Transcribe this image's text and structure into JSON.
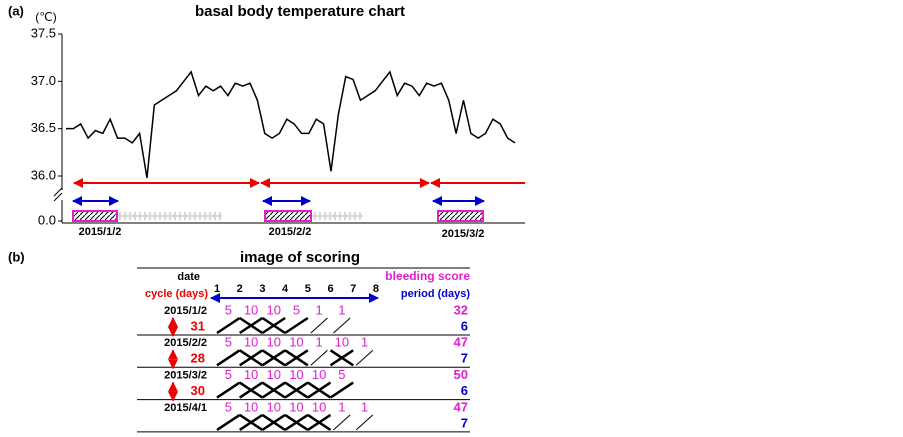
{
  "chart_data": {
    "type": "line",
    "panel_label": "(a)",
    "title": "basal body temperature chart",
    "y_label": "(℃)",
    "values": [
      36.5,
      36.5,
      36.55,
      36.4,
      36.48,
      36.45,
      36.6,
      36.4,
      36.4,
      36.35,
      36.45,
      35.98,
      36.75,
      36.8,
      36.85,
      36.9,
      37.0,
      37.1,
      36.85,
      36.95,
      36.9,
      36.95,
      36.85,
      36.98,
      36.95,
      36.98,
      36.8,
      36.45,
      36.4,
      36.45,
      36.6,
      36.55,
      36.45,
      36.45,
      36.6,
      36.55,
      36.05,
      36.65,
      37.05,
      37.02,
      36.8,
      36.85,
      36.9,
      37.0,
      37.1,
      36.85,
      36.98,
      36.95,
      36.85,
      36.98,
      36.95,
      36.98,
      36.8,
      36.45,
      36.8,
      36.45,
      36.4,
      36.45,
      36.6,
      36.55,
      36.4,
      36.35
    ],
    "color": "#000000",
    "ylim": [
      36.0,
      37.5
    ],
    "yticks": [
      {
        "value": 0,
        "label": "0.0"
      },
      {
        "value": 36.0,
        "label": "36.0"
      },
      36.5,
      {
        "value": 37.0,
        "label": "37.0"
      },
      37.5
    ],
    "period_start_dates": [
      "2015/1/2",
      "2015/2/2",
      "2015/3/2"
    ]
  },
  "scoring": {
    "panel_label": "(b)",
    "title": "image of  scoring",
    "headers": {
      "date": "date",
      "cycle": "cycle (days)",
      "bleeding": "bleeding score",
      "period": "period (days)"
    },
    "days": [
      1,
      2,
      3,
      4,
      5,
      6,
      7,
      8
    ],
    "rows": [
      {
        "date": "2015/1/2",
        "scores": [
          5,
          10,
          10,
          5,
          1,
          1
        ],
        "bleeding_score": 32,
        "period": 6
      },
      {
        "date": "2015/2/2",
        "scores": [
          5,
          10,
          10,
          10,
          1,
          10,
          1
        ],
        "bleeding_score": 47,
        "period": 7
      },
      {
        "date": "2015/3/2",
        "scores": [
          5,
          10,
          10,
          10,
          10,
          5
        ],
        "bleeding_score": 50,
        "period": 6
      },
      {
        "date": "2015/4/1",
        "scores": [
          5,
          10,
          10,
          10,
          10,
          1,
          1
        ],
        "bleeding_score": 47,
        "period": 7
      }
    ],
    "cycles": [
      31,
      28,
      30
    ]
  }
}
